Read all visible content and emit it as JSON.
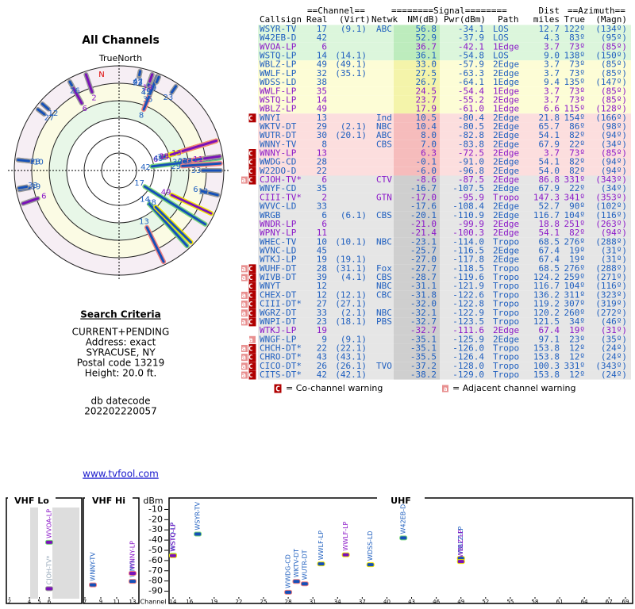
{
  "radar": {
    "title": "All Channels",
    "north_label": "TrueNorth",
    "magnetic_label": "N"
  },
  "search": {
    "title": "Search Criteria",
    "lines": [
      "CURRENT+PENDING",
      "Address: exact",
      "SYRACUSE, NY",
      "Postal code 13219",
      "Height: 20.0 ft."
    ],
    "datecode_label": "db datecode",
    "datecode": "202202220057",
    "link": "www.tvfool.com"
  },
  "table": {
    "group_headers": {
      "channel": "==Channel==",
      "signal": "========Signal========",
      "dist": "Dist",
      "azimuth": "==Azimuth=="
    },
    "headers": {
      "callsign": "Callsign",
      "real": "Real",
      "virt": "(Virt)",
      "netwk": "Netwk",
      "nm": "NM(dB)",
      "pwr": "Pwr(dBm)",
      "path": "Path",
      "dist": "miles",
      "az_true": "True",
      "az_magn": "(Magn)"
    },
    "rows": [
      {
        "callsign": "WSYR-TV",
        "color": "#1f5fbf",
        "real": "17",
        "virt": "(9.1)",
        "netwk": "ABC",
        "nm": "56.8",
        "pwr": "-34.1",
        "path": "LOS",
        "dist": "12.7",
        "az_true": "122º",
        "az_magn": "(134º)"
      },
      {
        "callsign": "W42EB-D",
        "color": "#1f5fbf",
        "real": "42",
        "nm": "52.9",
        "pwr": "-37.9",
        "path": "LOS",
        "dist": "4.3",
        "az_true": "83º",
        "az_magn": "(95º)"
      },
      {
        "callsign": "WVOA-LP",
        "color": "#8b18c8",
        "real": "6",
        "nm": "36.7",
        "pwr": "-42.1",
        "path": "1Edge",
        "dist": "3.7",
        "az_true": "73º",
        "az_magn": "(85º)"
      },
      {
        "callsign": "WSTQ-LP",
        "color": "#1f5fbf",
        "real": "14",
        "virt": "(14.1)",
        "nm": "36.1",
        "pwr": "-54.8",
        "path": "LOS",
        "dist": "9.0",
        "az_true": "138º",
        "az_magn": "(150º)"
      },
      {
        "callsign": "WBLZ-LP",
        "color": "#1f5fbf",
        "real": "49",
        "virt": "(49.1)",
        "nm": "33.0",
        "pwr": "-57.9",
        "path": "2Edge",
        "dist": "3.7",
        "az_true": "73º",
        "az_magn": "(85º)"
      },
      {
        "callsign": "WWLF-LP",
        "color": "#1f5fbf",
        "real": "32",
        "virt": "(35.1)",
        "nm": "27.5",
        "pwr": "-63.3",
        "path": "2Edge",
        "dist": "3.7",
        "az_true": "73º",
        "az_magn": "(85º)"
      },
      {
        "callsign": "WDSS-LD",
        "color": "#1f5fbf",
        "real": "38",
        "nm": "26.7",
        "pwr": "-64.1",
        "path": "1Edge",
        "dist": "9.4",
        "az_true": "135º",
        "az_magn": "(147º)"
      },
      {
        "callsign": "WWLF-LP",
        "color": "#8b18c8",
        "real": "35",
        "nm": "24.5",
        "pwr": "-54.4",
        "path": "1Edge",
        "dist": "3.7",
        "az_true": "73º",
        "az_magn": "(85º)"
      },
      {
        "callsign": "WSTQ-LP",
        "color": "#8b18c8",
        "real": "14",
        "nm": "23.7",
        "pwr": "-55.2",
        "path": "2Edge",
        "dist": "3.7",
        "az_true": "73º",
        "az_magn": "(85º)"
      },
      {
        "callsign": "WBLZ-LP",
        "color": "#8b18c8",
        "real": "49",
        "nm": "17.9",
        "pwr": "-61.0",
        "path": "1Edge",
        "dist": "6.6",
        "az_true": "115º",
        "az_magn": "(128º)"
      },
      {
        "warn": "C",
        "callsign": "WNYI",
        "color": "#1f5fbf",
        "real": "13",
        "netwk": "Ind",
        "nm": "10.5",
        "pwr": "-80.4",
        "path": "2Edge",
        "dist": "21.8",
        "az_true": "154º",
        "az_magn": "(166º)"
      },
      {
        "callsign": "WKTV-DT",
        "color": "#1f5fbf",
        "real": "29",
        "virt": "(2.1)",
        "netwk": "NBC",
        "nm": "10.4",
        "pwr": "-80.5",
        "path": "2Edge",
        "dist": "65.7",
        "az_true": "86º",
        "az_magn": "(98º)"
      },
      {
        "callsign": "WUTR-DT",
        "color": "#1f5fbf",
        "real": "30",
        "virt": "(20.1)",
        "netwk": "ABC",
        "nm": "8.0",
        "pwr": "-82.8",
        "path": "2Edge",
        "dist": "54.1",
        "az_true": "82º",
        "az_magn": "(94º)"
      },
      {
        "callsign": "WNNY-TV",
        "color": "#1f5fbf",
        "real": "8",
        "netwk": "CBS",
        "nm": "7.0",
        "pwr": "-83.8",
        "path": "2Edge",
        "dist": "67.9",
        "az_true": "22º",
        "az_magn": "(34º)"
      },
      {
        "warn": "C",
        "callsign": "WNNY-LP",
        "color": "#8b18c8",
        "real": "13",
        "nm": "6.3",
        "pwr": "-72.5",
        "path": "2Edge",
        "dist": "3.7",
        "az_true": "73º",
        "az_magn": "(85º)"
      },
      {
        "warn": "C",
        "callsign": "WWDG-CD",
        "color": "#1f5fbf",
        "real": "28",
        "nm": "-0.1",
        "pwr": "-91.0",
        "path": "2Edge",
        "dist": "54.1",
        "az_true": "82º",
        "az_magn": "(94º)"
      },
      {
        "warn": "C",
        "callsign": "W22DO-D",
        "color": "#1f5fbf",
        "real": "22",
        "nm": "-6.0",
        "pwr": "-96.8",
        "path": "2Edge",
        "dist": "54.0",
        "az_true": "82º",
        "az_magn": "(94º)"
      },
      {
        "warn": "aC",
        "callsign": "CJOH-TV*",
        "color": "#8b18c8",
        "real": "6",
        "netwk": "CTV",
        "nm": "-8.6",
        "pwr": "-87.5",
        "path": "2Edge",
        "dist": "86.8",
        "az_true": "331º",
        "az_magn": "(343º)"
      },
      {
        "callsign": "WNYF-CD",
        "color": "#1f5fbf",
        "real": "35",
        "nm": "-16.7",
        "pwr": "-107.5",
        "path": "2Edge",
        "dist": "67.9",
        "az_true": "22º",
        "az_magn": "(34º)"
      },
      {
        "callsign": "CIII-TV*",
        "color": "#8b18c8",
        "real": "2",
        "netwk": "GTN",
        "nm": "-17.0",
        "pwr": "-95.9",
        "path": "Tropo",
        "dist": "147.3",
        "az_true": "341º",
        "az_magn": "(353º)"
      },
      {
        "callsign": "WVVC-LD",
        "color": "#1f5fbf",
        "real": "33",
        "nm": "-17.6",
        "pwr": "-108.4",
        "path": "2Edge",
        "dist": "52.7",
        "az_true": "90º",
        "az_magn": "(102º)"
      },
      {
        "callsign": "WRGB",
        "color": "#1f5fbf",
        "real": "6",
        "virt": "(6.1)",
        "netwk": "CBS",
        "nm": "-20.1",
        "pwr": "-110.9",
        "path": "2Edge",
        "dist": "116.7",
        "az_true": "104º",
        "az_magn": "(116º)"
      },
      {
        "callsign": "WNDR-LP",
        "color": "#8b18c8",
        "real": "6",
        "nm": "-21.0",
        "pwr": "-99.9",
        "path": "2Edge",
        "dist": "18.8",
        "az_true": "251º",
        "az_magn": "(263º)"
      },
      {
        "callsign": "WPNY-LP",
        "color": "#8b18c8",
        "real": "11",
        "nm": "-21.4",
        "pwr": "-100.3",
        "path": "2Edge",
        "dist": "54.1",
        "az_true": "82º",
        "az_magn": "(94º)"
      },
      {
        "callsign": "WHEC-TV",
        "color": "#1f5fbf",
        "real": "10",
        "virt": "(10.1)",
        "netwk": "NBC",
        "nm": "-23.1",
        "pwr": "-114.0",
        "path": "Tropo",
        "dist": "68.5",
        "az_true": "276º",
        "az_magn": "(288º)"
      },
      {
        "callsign": "WVNC-LD",
        "color": "#1f5fbf",
        "real": "45",
        "nm": "-25.7",
        "pwr": "-116.5",
        "path": "2Edge",
        "dist": "67.4",
        "az_true": "19º",
        "az_magn": "(31º)"
      },
      {
        "callsign": "WTKJ-LP",
        "color": "#1f5fbf",
        "real": "19",
        "virt": "(19.1)",
        "nm": "-27.0",
        "pwr": "-117.8",
        "path": "2Edge",
        "dist": "67.4",
        "az_true": "19º",
        "az_magn": "(31º)"
      },
      {
        "warn": "aC",
        "callsign": "WUHF-DT",
        "color": "#1f5fbf",
        "real": "28",
        "virt": "(31.1)",
        "netwk": "Fox",
        "nm": "-27.7",
        "pwr": "-118.5",
        "path": "Tropo",
        "dist": "68.5",
        "az_true": "276º",
        "az_magn": "(288º)"
      },
      {
        "warn": "aC",
        "callsign": "WIVB-DT",
        "color": "#1f5fbf",
        "real": "39",
        "virt": "(4.1)",
        "netwk": "CBS",
        "nm": "-28.7",
        "pwr": "-119.6",
        "path": "Tropo",
        "dist": "124.2",
        "az_true": "259º",
        "az_magn": "(271º)"
      },
      {
        "warn": "C",
        "callsign": "WNYT",
        "color": "#1f5fbf",
        "real": "12",
        "netwk": "NBC",
        "nm": "-31.1",
        "pwr": "-121.9",
        "path": "Tropo",
        "dist": "116.7",
        "az_true": "104º",
        "az_magn": "(116º)"
      },
      {
        "warn": "aC",
        "callsign": "CHEX-DT",
        "color": "#1f5fbf",
        "real": "12",
        "virt": "(12.1)",
        "netwk": "CBC",
        "nm": "-31.8",
        "pwr": "-122.6",
        "path": "Tropo",
        "dist": "136.2",
        "az_true": "311º",
        "az_magn": "(323º)"
      },
      {
        "warn": "aC",
        "callsign": "CIII-DT*",
        "color": "#1f5fbf",
        "real": "27",
        "virt": "(27.1)",
        "nm": "-32.0",
        "pwr": "-122.8",
        "path": "Tropo",
        "dist": "119.2",
        "az_true": "307º",
        "az_magn": "(319º)"
      },
      {
        "warn": "aC",
        "callsign": "WGRZ-DT",
        "color": "#1f5fbf",
        "real": "33",
        "virt": "(2.1)",
        "netwk": "NBC",
        "nm": "-32.1",
        "pwr": "-122.9",
        "path": "Tropo",
        "dist": "120.2",
        "az_true": "260º",
        "az_magn": "(272º)"
      },
      {
        "warn": "aC",
        "callsign": "WNPI-DT",
        "color": "#1f5fbf",
        "real": "23",
        "virt": "(18.1)",
        "netwk": "PBS",
        "nm": "-32.7",
        "pwr": "-123.5",
        "path": "Tropo",
        "dist": "121.5",
        "az_true": "34º",
        "az_magn": "(46º)"
      },
      {
        "callsign": "WTKJ-LP",
        "color": "#8b18c8",
        "real": "19",
        "nm": "-32.7",
        "pwr": "-111.6",
        "path": "2Edge",
        "dist": "67.4",
        "az_true": "19º",
        "az_magn": "(31º)"
      },
      {
        "warn": "a",
        "callsign": "WNGF-LP",
        "color": "#1f5fbf",
        "real": "9",
        "virt": "(9.1)",
        "nm": "-35.1",
        "pwr": "-125.9",
        "path": "2Edge",
        "dist": "97.1",
        "az_true": "23º",
        "az_magn": "(35º)"
      },
      {
        "warn": "aC",
        "callsign": "CHCH-DT*",
        "color": "#1f5fbf",
        "real": "22",
        "virt": "(22.1)",
        "nm": "-35.1",
        "pwr": "-126.0",
        "path": "Tropo",
        "dist": "153.8",
        "az_true": "12º",
        "az_magn": "(24º)"
      },
      {
        "warn": "aC",
        "callsign": "CHRO-DT*",
        "color": "#1f5fbf",
        "real": "43",
        "virt": "(43.1)",
        "nm": "-35.5",
        "pwr": "-126.4",
        "path": "Tropo",
        "dist": "153.8",
        "az_true": "12º",
        "az_magn": "(24º)"
      },
      {
        "warn": "aC",
        "callsign": "CICO-DT*",
        "color": "#1f5fbf",
        "real": "26",
        "virt": "(26.1)",
        "netwk": "TVO",
        "nm": "-37.2",
        "pwr": "-128.0",
        "path": "Tropo",
        "dist": "100.3",
        "az_true": "331º",
        "az_magn": "(343º)"
      },
      {
        "warn": "aC",
        "callsign": "CITS-DT*",
        "color": "#1f5fbf",
        "real": "42",
        "virt": "(42.1)",
        "nm": "-38.2",
        "pwr": "-129.0",
        "path": "Tropo",
        "dist": "153.8",
        "az_true": "12º",
        "az_magn": "(24º)"
      }
    ]
  },
  "legend": {
    "co_icon": "C",
    "co_text": "= Co-channel warning",
    "adj_icon": "a",
    "adj_text": "= Adjacent channel warning"
  },
  "spectrum": {
    "y_label": "dBm",
    "x_label": "Channel",
    "ylim": [
      -5,
      -95
    ],
    "yticks": [
      -10,
      -20,
      -30,
      -40,
      -50,
      -60,
      -70,
      -80,
      -90
    ],
    "sections": [
      {
        "name": "VHF Lo",
        "ticks": [
          2,
          4,
          5,
          6
        ]
      },
      {
        "name": "VHF Hi",
        "ticks": [
          7,
          9,
          11,
          13
        ]
      },
      {
        "name": "UHF",
        "ticks": [
          14,
          16,
          19,
          22,
          25,
          28,
          31,
          34,
          37,
          40,
          43,
          46,
          49,
          52,
          55,
          58,
          61,
          64,
          67,
          69
        ]
      }
    ]
  }
}
